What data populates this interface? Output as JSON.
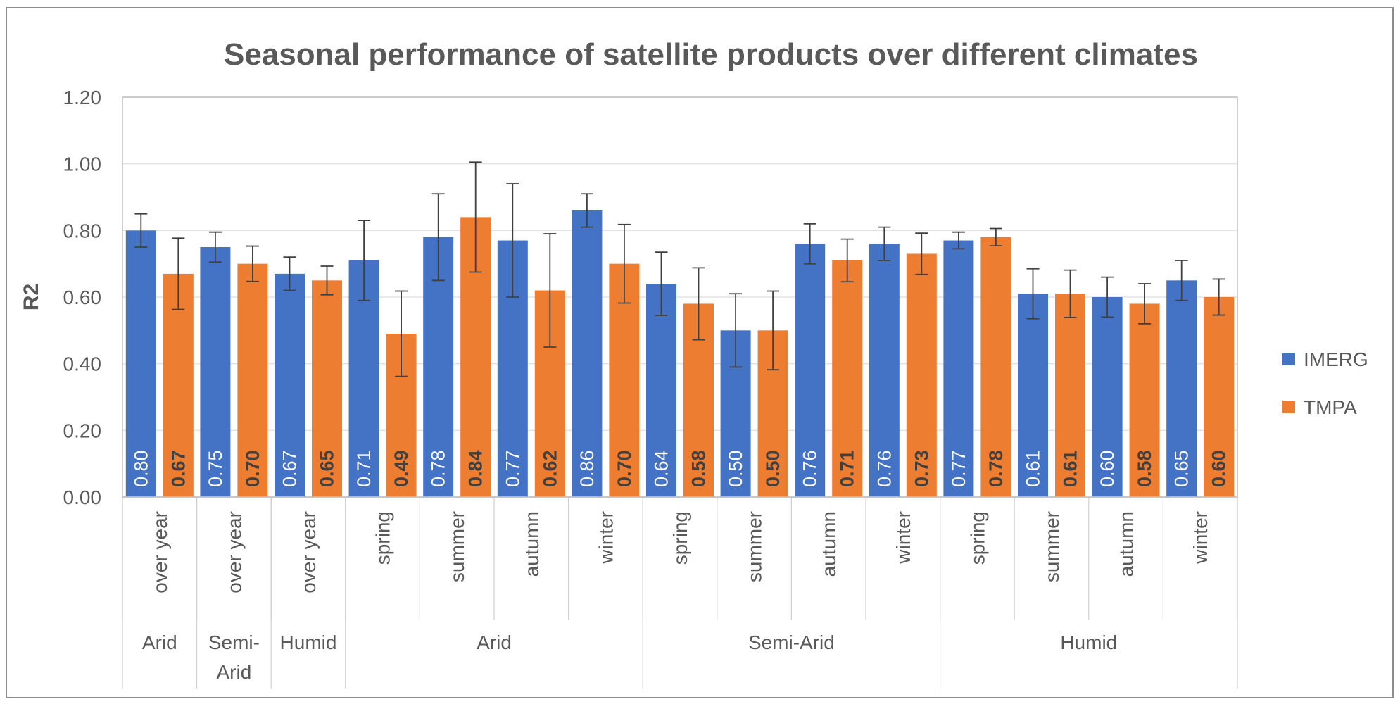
{
  "chart_data": {
    "type": "bar",
    "title": "Seasonal performance of satellite products over different climates",
    "xlabel": "",
    "ylabel": "R2",
    "ylim": [
      0,
      1.2
    ],
    "yticks": [
      "0.00",
      "0.20",
      "0.40",
      "0.60",
      "0.80",
      "1.00",
      "1.20"
    ],
    "grid": true,
    "legend_position": "right",
    "categories": [
      "over year",
      "over year",
      "over year",
      "spring",
      "summer",
      "autumn",
      "winter",
      "spring",
      "summer",
      "autumn",
      "winter",
      "spring",
      "summer",
      "autumn",
      "winter"
    ],
    "groups": [
      {
        "label": "Arid",
        "span": 1
      },
      {
        "label": "Semi-Arid",
        "lines": [
          "Semi-",
          "Arid"
        ],
        "span": 1
      },
      {
        "label": "Humid",
        "span": 1
      },
      {
        "label": "Arid",
        "span": 4
      },
      {
        "label": "Semi-Arid",
        "span": 4
      },
      {
        "label": "Humid",
        "span": 4
      }
    ],
    "series": [
      {
        "name": "IMERG",
        "color": "#4472C4",
        "values": [
          0.8,
          0.75,
          0.67,
          0.71,
          0.78,
          0.77,
          0.86,
          0.64,
          0.5,
          0.76,
          0.76,
          0.77,
          0.61,
          0.6,
          0.65
        ],
        "labels": [
          "0.80",
          "0.75",
          "0.67",
          "0.71",
          "0.78",
          "0.77",
          "0.86",
          "0.64",
          "0.50",
          "0.76",
          "0.76",
          "0.77",
          "0.61",
          "0.60",
          "0.65"
        ],
        "errors": [
          0.05,
          0.045,
          0.05,
          0.12,
          0.13,
          0.17,
          0.05,
          0.095,
          0.11,
          0.06,
          0.05,
          0.025,
          0.075,
          0.06,
          0.06
        ]
      },
      {
        "name": "TMPA",
        "color": "#ED7D31",
        "values": [
          0.67,
          0.7,
          0.65,
          0.49,
          0.84,
          0.62,
          0.7,
          0.58,
          0.5,
          0.71,
          0.73,
          0.78,
          0.61,
          0.58,
          0.6
        ],
        "labels": [
          "0.67",
          "0.70",
          "0.65",
          "0.49",
          "0.84",
          "0.62",
          "0.70",
          "0.58",
          "0.50",
          "0.71",
          "0.73",
          "0.78",
          "0.61",
          "0.58",
          "0.60"
        ],
        "errors": [
          0.107,
          0.053,
          0.043,
          0.128,
          0.165,
          0.17,
          0.118,
          0.108,
          0.118,
          0.064,
          0.062,
          0.026,
          0.071,
          0.06,
          0.054
        ]
      }
    ]
  }
}
